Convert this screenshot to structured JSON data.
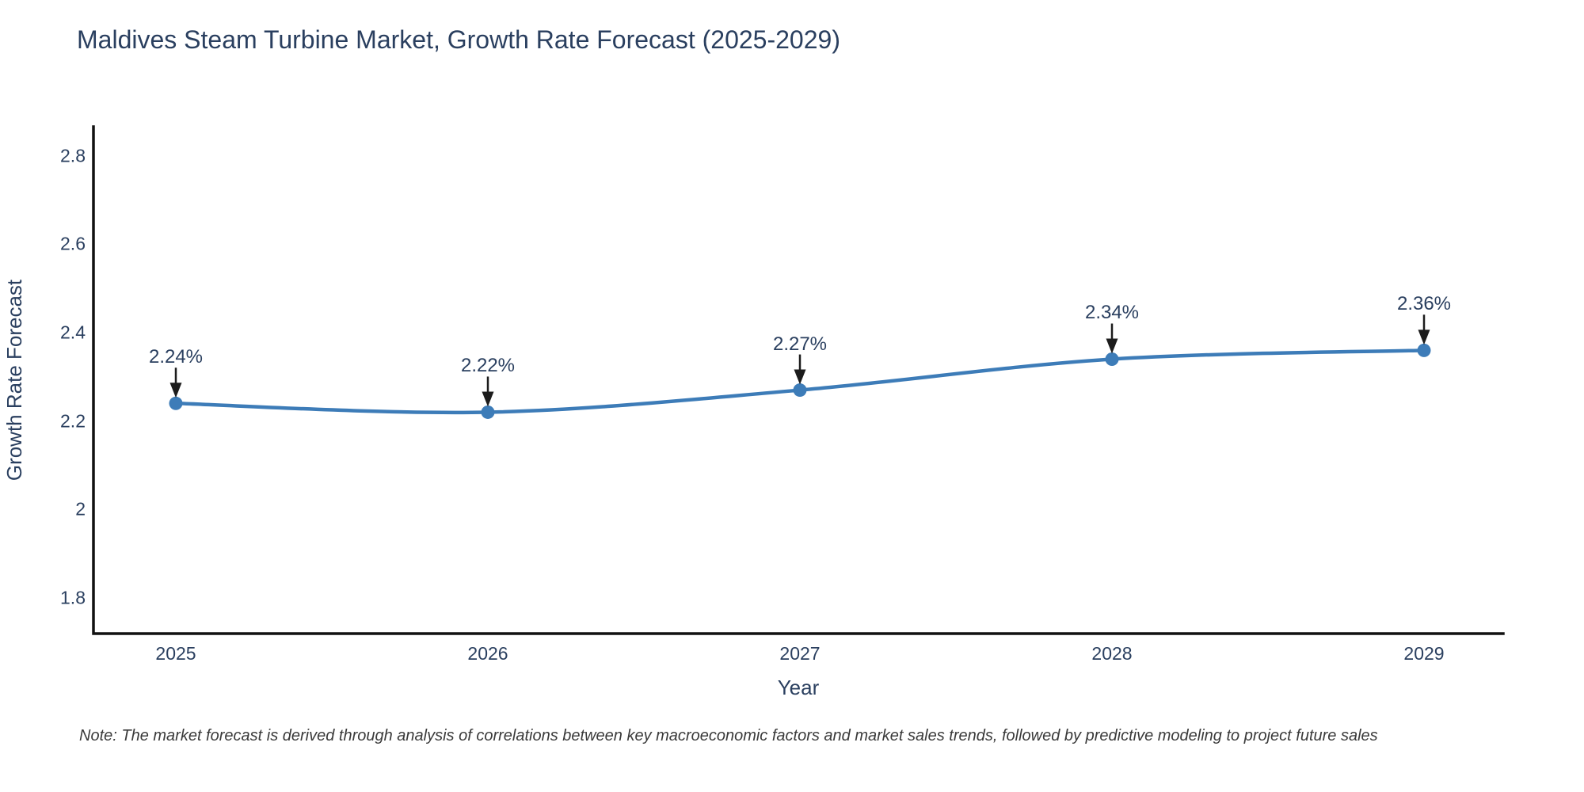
{
  "title": "Maldives Steam Turbine Market, Growth Rate Forecast (2025-2029)",
  "note": "Note: The market forecast is derived through analysis of correlations between key macroeconomic factors and market sales trends, followed by predictive modeling to project future sales",
  "chart_data": {
    "type": "line",
    "title": "Maldives Steam Turbine Market, Growth Rate Forecast (2025-2029)",
    "x": [
      2025,
      2026,
      2027,
      2028,
      2029
    ],
    "series": [
      {
        "name": "Growth Rate Forecast",
        "values": [
          2.24,
          2.22,
          2.27,
          2.34,
          2.36
        ]
      }
    ],
    "point_labels": [
      "2.24%",
      "2.22%",
      "2.27%",
      "2.34%",
      "2.36%"
    ],
    "xlabel": "Year",
    "ylabel": "Growth Rate Forecast",
    "yticks": [
      1.8,
      2.0,
      2.2,
      2.4,
      2.6,
      2.8
    ],
    "ytick_labels": [
      "1.8",
      "2",
      "2.2",
      "2.4",
      "2.6",
      "2.8"
    ],
    "ylim": [
      1.719,
      2.866
    ],
    "grid": false,
    "legend": false,
    "line_shape": "spline",
    "line_color": "#3d7cb8",
    "marker_color": "#3d7cb8",
    "axis_color": "#111111",
    "arrow_color": "#1c1c1c"
  }
}
